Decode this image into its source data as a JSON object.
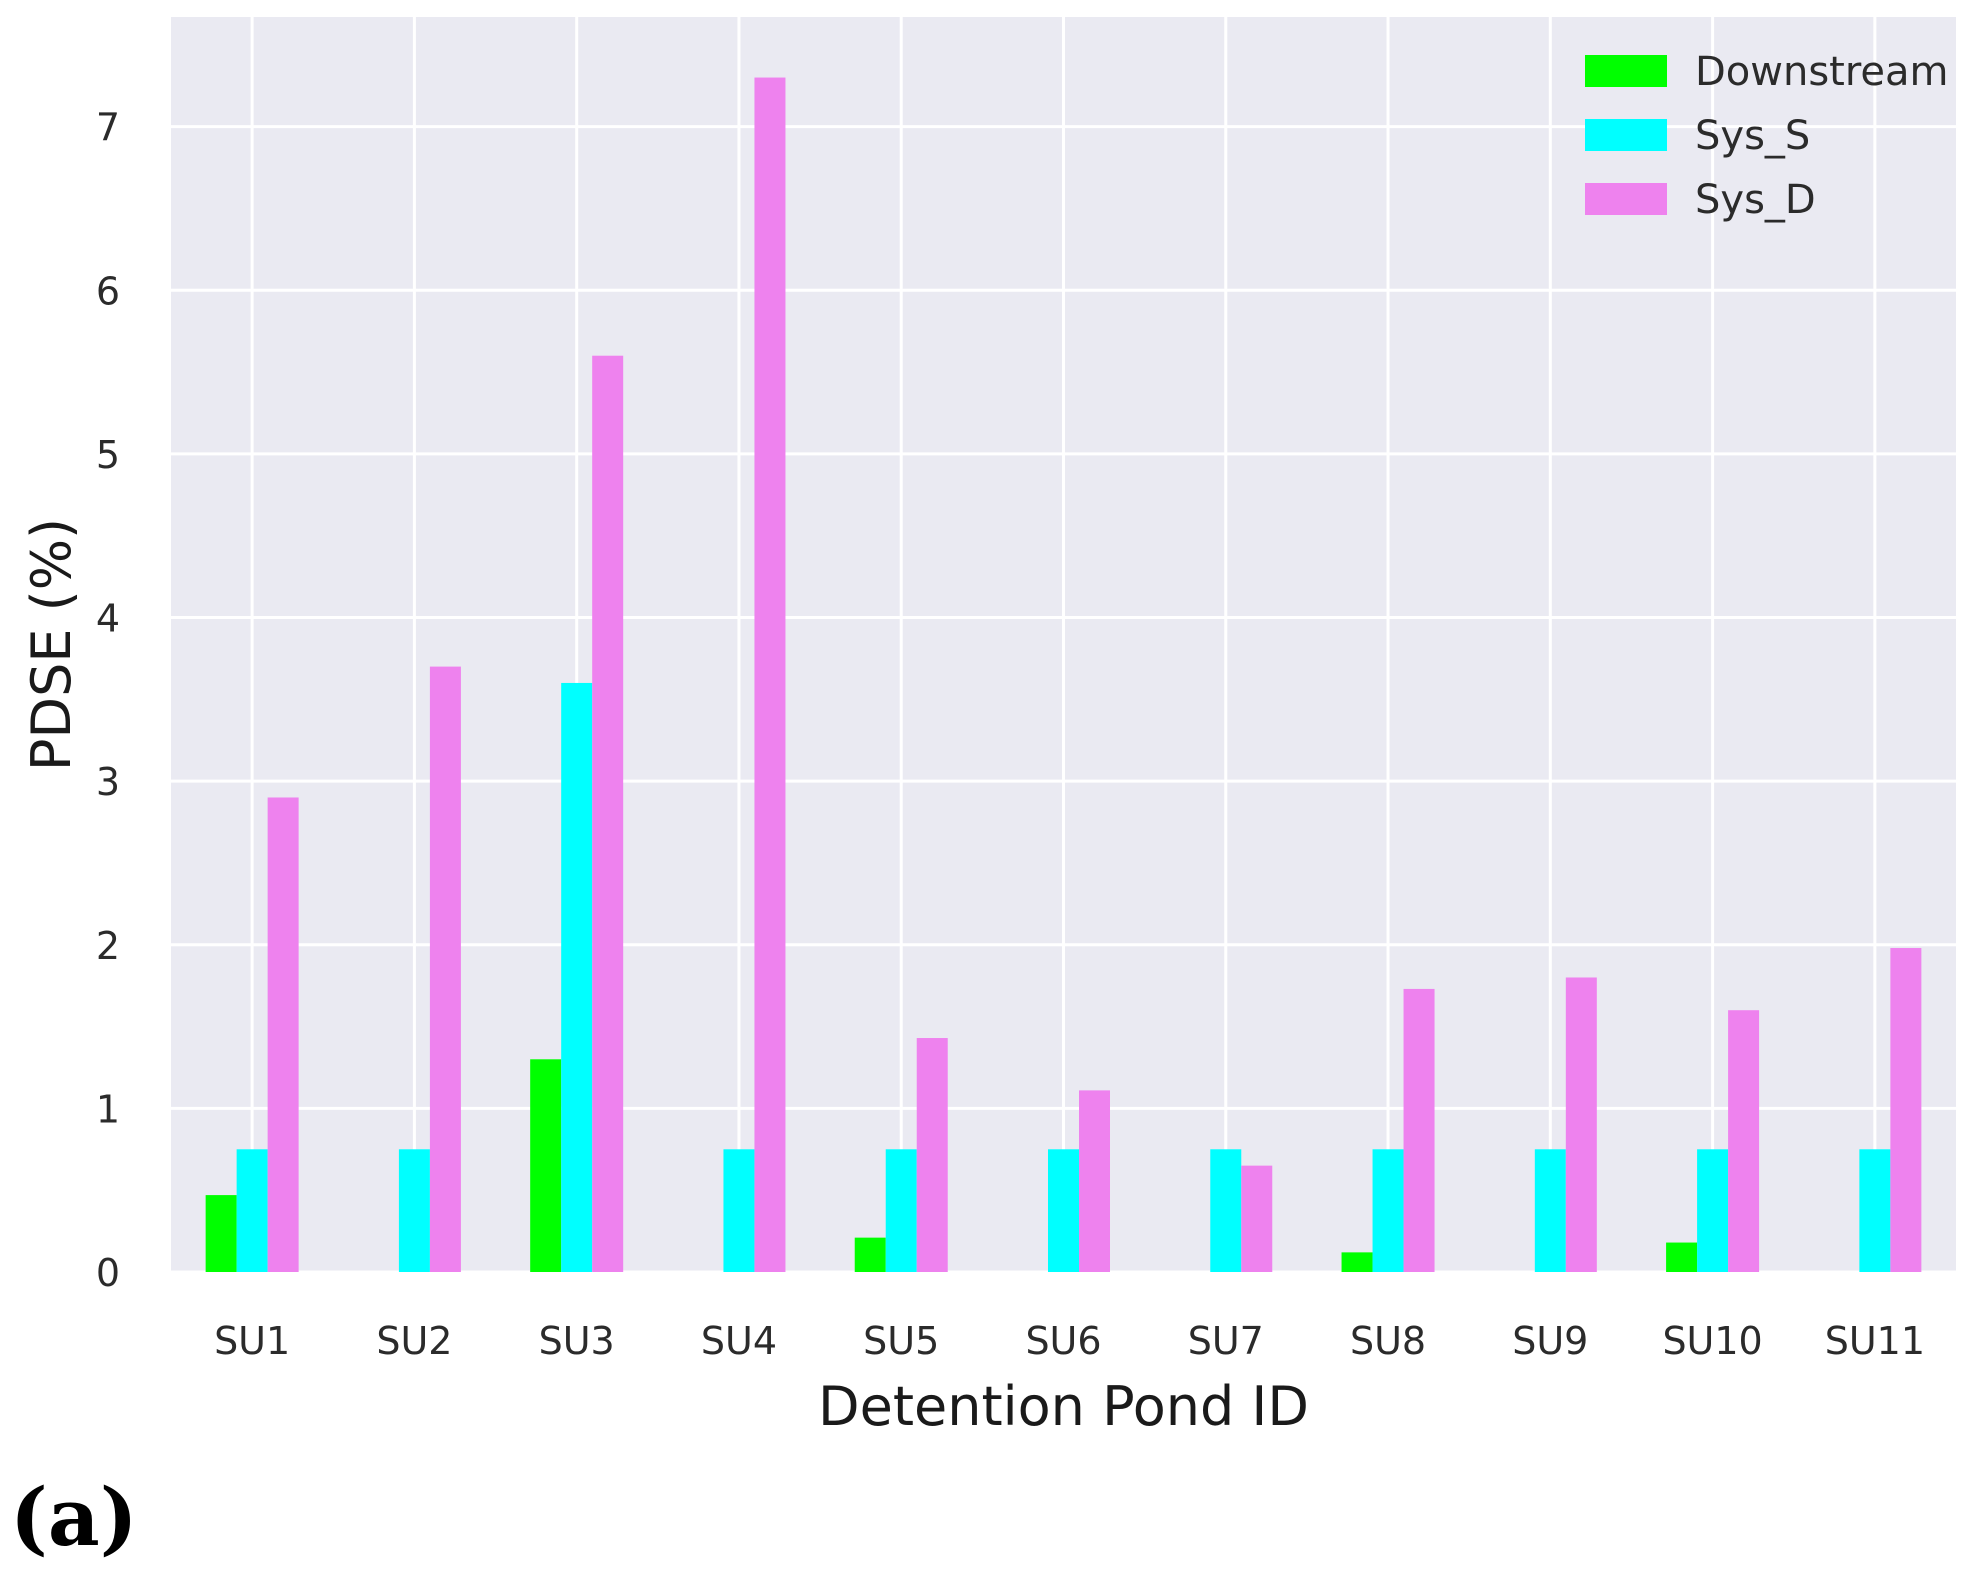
{
  "panel_label": "(a)",
  "chart_data": {
    "type": "bar",
    "categories": [
      "SU1",
      "SU2",
      "SU3",
      "SU4",
      "SU5",
      "SU6",
      "SU7",
      "SU8",
      "SU9",
      "SU10",
      "SU11"
    ],
    "series": [
      {
        "name": "Downstream",
        "color": "#00ff00",
        "values": [
          0.47,
          0,
          1.3,
          0,
          0.21,
          0,
          0,
          0.12,
          0,
          0.18,
          0
        ]
      },
      {
        "name": "Sys_S",
        "color": "#00ffff",
        "values": [
          0.75,
          0.75,
          3.6,
          0.75,
          0.75,
          0.75,
          0.75,
          0.75,
          0.75,
          0.75,
          0.75
        ]
      },
      {
        "name": "Sys_D",
        "color": "#ee82ee",
        "values": [
          2.9,
          3.7,
          5.6,
          7.3,
          1.43,
          1.11,
          0.65,
          1.73,
          1.8,
          1.6,
          1.98
        ]
      }
    ],
    "title": "",
    "xlabel": "Detention Pond ID",
    "ylabel": "PDSE (%)",
    "ylim": [
      0,
      7.67
    ],
    "yticks": [
      0,
      1,
      2,
      3,
      4,
      5,
      6,
      7
    ],
    "grid": true,
    "background": "#eaeaf2",
    "legend_position": "top-right"
  }
}
